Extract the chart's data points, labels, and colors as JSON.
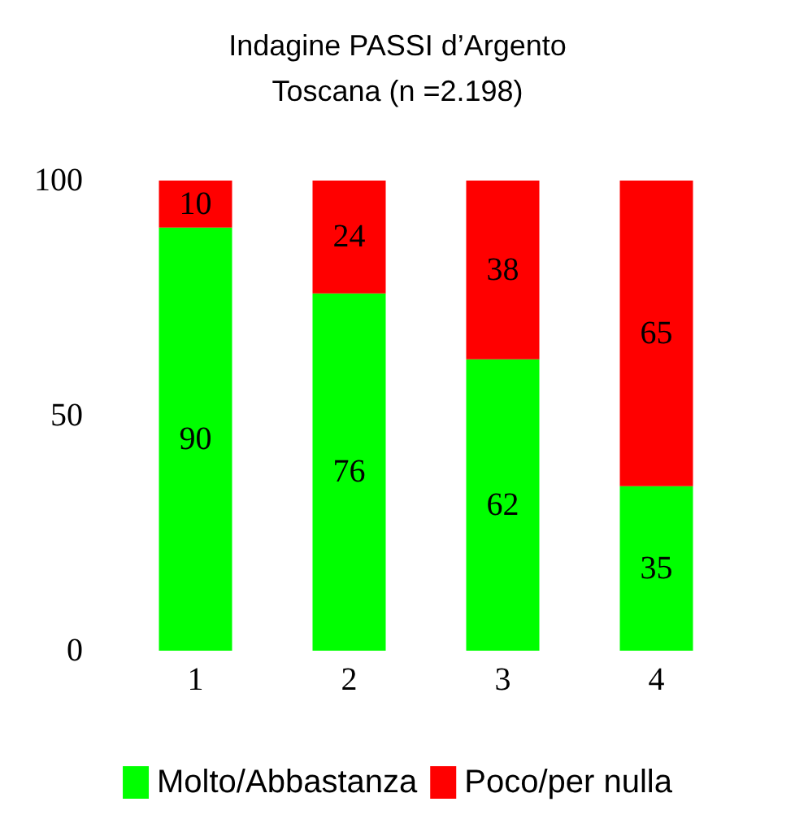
{
  "chart_data": {
    "type": "bar",
    "title": "Indagine PASSI d’Argento",
    "subtitle": "Toscana (n =2.198)",
    "categories": [
      "1",
      "2",
      "3",
      "4"
    ],
    "series": [
      {
        "name": "Molto/Abbastanza",
        "color": "#00ff00",
        "values": [
          90,
          76,
          62,
          35
        ]
      },
      {
        "name": "Poco/per nulla",
        "color": "#ff0000",
        "values": [
          10,
          24,
          38,
          65
        ]
      }
    ],
    "stacked": true,
    "data_labels": true,
    "ylim": [
      0,
      100
    ],
    "yticks": [
      0,
      50,
      100
    ],
    "grid": false,
    "legend": "bottom"
  }
}
